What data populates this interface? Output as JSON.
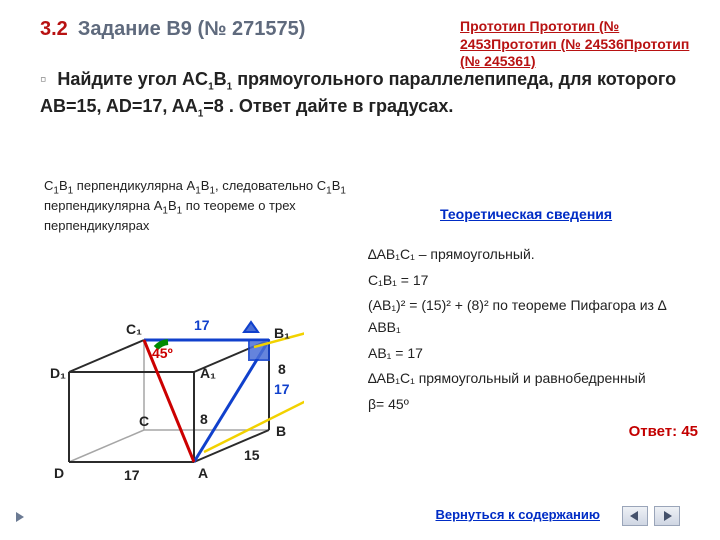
{
  "header": {
    "section_no": "3.2",
    "title": "Задание B9 (№ 271575)"
  },
  "proto": {
    "text": "Прототип Прототип (№ 2453Прототип (№ 24536Прототип (№ 245361)"
  },
  "problem": {
    "bullet": "▫",
    "text_html": "Найдите угол AC<sub>1</sub>B<sub>1</sub> прямоугольного параллелепипеда, для которого  AB=15, AD=17, AA<sub>1</sub>=8 . Ответ дайте в градусах."
  },
  "left_text": {
    "html": "C<sub>1</sub>B<sub>1</sub> перпендикулярна A<sub>1</sub>B<sub>1</sub>, следовательно C<sub>1</sub>B<sub>1</sub> перпендикулярна  A<sub>1</sub>B<sub>1</sub> по теореме о трех перпендикулярах"
  },
  "theory_link": "Теоретическая сведения",
  "right_col": {
    "l1": "∆AB₁C₁ – прямоугольный.",
    "l2": "C₁B₁ = 17",
    "l3": "(AB₁)² = (15)² + (8)² по теореме Пифагора из ∆ ABB₁",
    "l4": "AB₁ = 17",
    "l5": "∆AB₁C₁ прямоугольный и равнобедренный",
    "l6": "β= 45º"
  },
  "answer": "Ответ: 45",
  "back": "Вернуться к содержанию",
  "diagram": {
    "box_color": "#2b2b2b",
    "back_color": "#a6a6a6",
    "red": "#cc0000",
    "blue": "#1040cc",
    "green": "#008a00",
    "yellow": "#f2d200",
    "labels": {
      "A": "A",
      "B": "B",
      "C": "C",
      "D": "D",
      "A1": "A₁",
      "B1": "B₁",
      "C1": "C₁",
      "D1": "D₁",
      "n17top": "17",
      "n17left": "17",
      "n17right": "17",
      "n8l": "8",
      "n8r": "8",
      "n15": "15",
      "ang": "45º"
    }
  }
}
